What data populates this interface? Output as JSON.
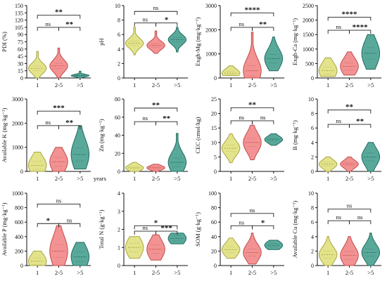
{
  "colors": {
    "g1": "#dede78",
    "g2": "#f07f7f",
    "g3": "#3c9a8a",
    "g1_stroke": "#a8a640",
    "g2_stroke": "#c24a4a",
    "g3_stroke": "#1f6b5e",
    "axis": "#111111",
    "bracket": "#222222"
  },
  "chart_data": [
    {
      "type": "violin",
      "ylabel": "PDI (%)",
      "yticks": [
        "0",
        "15",
        "30",
        "45",
        "60",
        "75",
        "90",
        "105",
        "120",
        "135",
        "150"
      ],
      "ylim": [
        0,
        150
      ],
      "categories": [
        "1",
        "2-5",
        ">5"
      ],
      "series": [
        {
          "center": 20,
          "spread": 26,
          "min": 0,
          "max": 55
        },
        {
          "center": 25,
          "spread": 30,
          "min": 0,
          "max": 62
        },
        {
          "center": 5,
          "spread": 6,
          "min": 0,
          "max": 14
        }
      ],
      "brackets": [
        {
          "from": 0,
          "to": 1,
          "label": "ns",
          "y": 105
        },
        {
          "from": 1,
          "to": 2,
          "label": "**",
          "y": 105
        },
        {
          "from": 0,
          "to": 2,
          "label": "**",
          "y": 130
        }
      ]
    },
    {
      "type": "violin",
      "ylabel": "pH",
      "yticks": [
        "0",
        "2",
        "4",
        "6",
        "8",
        "10"
      ],
      "ylim": [
        0,
        10
      ],
      "categories": [
        "1",
        "2-5",
        ">5"
      ],
      "series": [
        {
          "center": 4.8,
          "spread": 1.6,
          "min": 3.2,
          "max": 7
        },
        {
          "center": 4.5,
          "spread": 1.4,
          "min": 3.4,
          "max": 6.5
        },
        {
          "center": 5.3,
          "spread": 1.6,
          "min": 3.6,
          "max": 7
        }
      ],
      "brackets": [
        {
          "from": 0,
          "to": 1,
          "label": "ns",
          "y": 7.6
        },
        {
          "from": 1,
          "to": 2,
          "label": "*",
          "y": 7.6
        },
        {
          "from": 0,
          "to": 2,
          "label": "ns",
          "y": 9.2
        }
      ]
    },
    {
      "type": "violin",
      "ylabel": "Exgh-Mg (mg·kg⁻¹)",
      "yticks": [
        "0",
        "1000",
        "2000",
        "3000"
      ],
      "ylim": [
        0,
        3000
      ],
      "categories": [
        "1",
        "2-5",
        ">5"
      ],
      "series": [
        {
          "center": 200,
          "spread": 420,
          "min": 100,
          "max": 500
        },
        {
          "center": 300,
          "spread": 1200,
          "min": 0,
          "max": 1900
        },
        {
          "center": 800,
          "spread": 1000,
          "min": 300,
          "max": 1700
        }
      ],
      "brackets": [
        {
          "from": 0,
          "to": 1,
          "label": "ns",
          "y": 2100
        },
        {
          "from": 1,
          "to": 2,
          "label": "**",
          "y": 2100
        },
        {
          "from": 0,
          "to": 2,
          "label": "****",
          "y": 2700
        }
      ]
    },
    {
      "type": "violin",
      "ylabel": "Exgh-Ca (mg·kg⁻¹)",
      "yticks": [
        "0",
        "500",
        "1000",
        "1500",
        "2000",
        "2500"
      ],
      "ylim": [
        0,
        2500
      ],
      "categories": [
        "1",
        "2-5",
        ">5"
      ],
      "series": [
        {
          "center": 250,
          "spread": 700,
          "min": 50,
          "max": 700
        },
        {
          "center": 400,
          "spread": 700,
          "min": 100,
          "max": 900
        },
        {
          "center": 850,
          "spread": 1100,
          "min": 300,
          "max": 1500
        }
      ],
      "brackets": [
        {
          "from": 0,
          "to": 1,
          "label": "ns",
          "y": 1650
        },
        {
          "from": 1,
          "to": 2,
          "label": "****",
          "y": 1650
        },
        {
          "from": 0,
          "to": 2,
          "label": "****",
          "y": 2100
        }
      ]
    },
    {
      "type": "violin",
      "ylabel": "Available K (mg·kg⁻¹)",
      "yticks": [
        "0",
        "1000",
        "2000",
        "3000"
      ],
      "ylim": [
        0,
        3000
      ],
      "xlabel_suffix": "years",
      "categories": [
        "1",
        "2-5",
        ">5"
      ],
      "series": [
        {
          "center": 250,
          "spread": 900,
          "min": 0,
          "max": 800
        },
        {
          "center": 400,
          "spread": 1000,
          "min": 0,
          "max": 1000
        },
        {
          "center": 700,
          "spread": 1500,
          "min": 100,
          "max": 1900
        }
      ],
      "brackets": [
        {
          "from": 0,
          "to": 1,
          "label": "ns",
          "y": 1900
        },
        {
          "from": 1,
          "to": 2,
          "label": "**",
          "y": 1900
        },
        {
          "from": 0,
          "to": 2,
          "label": "***",
          "y": 2500
        }
      ]
    },
    {
      "type": "violin",
      "ylabel": "Zn (mg·kg⁻¹)",
      "yticks": [
        "0",
        "20",
        "40",
        "60",
        "80"
      ],
      "ylim": [
        0,
        80
      ],
      "categories": [
        "1",
        "2-5",
        ">5"
      ],
      "series": [
        {
          "center": 4,
          "spread": 8,
          "min": 0,
          "max": 10
        },
        {
          "center": 4,
          "spread": 6,
          "min": 0,
          "max": 8
        },
        {
          "center": 10,
          "spread": 26,
          "min": 0,
          "max": 42
        }
      ],
      "brackets": [
        {
          "from": 0,
          "to": 1,
          "label": "ns",
          "y": 55
        },
        {
          "from": 1,
          "to": 2,
          "label": "**",
          "y": 55
        },
        {
          "from": 0,
          "to": 2,
          "label": "**",
          "y": 70
        }
      ]
    },
    {
      "type": "violin",
      "ylabel": "CEC (cmol/kg)",
      "yticks": [
        "0",
        "5",
        "10",
        "15",
        "20",
        "25"
      ],
      "ylim": [
        0,
        25
      ],
      "categories": [
        "1",
        "2-5",
        ">5"
      ],
      "series": [
        {
          "center": 8,
          "spread": 6,
          "min": 3,
          "max": 13
        },
        {
          "center": 10,
          "spread": 8,
          "min": 4,
          "max": 16
        },
        {
          "center": 11,
          "spread": 3,
          "min": 9,
          "max": 13
        }
      ],
      "brackets": [
        {
          "from": 0,
          "to": 1,
          "label": "ns",
          "y": 17.5
        },
        {
          "from": 1,
          "to": 2,
          "label": "ns",
          "y": 17.5
        },
        {
          "from": 0,
          "to": 2,
          "label": "**",
          "y": 22
        }
      ]
    },
    {
      "type": "violin",
      "ylabel": "B (mg·kg⁻¹)",
      "yticks": [
        "0",
        "2",
        "4",
        "6",
        "8",
        "10"
      ],
      "ylim": [
        0,
        10
      ],
      "categories": [
        "1",
        "2-5",
        ">5"
      ],
      "series": [
        {
          "center": 1,
          "spread": 1.4,
          "min": 0,
          "max": 2
        },
        {
          "center": 1,
          "spread": 1.3,
          "min": 0,
          "max": 2
        },
        {
          "center": 2,
          "spread": 3,
          "min": 0,
          "max": 4
        }
      ],
      "brackets": [
        {
          "from": 0,
          "to": 1,
          "label": "ns",
          "y": 6.5
        },
        {
          "from": 1,
          "to": 2,
          "label": "**",
          "y": 6.5
        },
        {
          "from": 0,
          "to": 2,
          "label": "**",
          "y": 8.5
        }
      ]
    },
    {
      "type": "violin",
      "ylabel": "Available P (mg·kg⁻¹)",
      "yticks": [
        "0",
        "200",
        "400",
        "600",
        "800",
        "1000"
      ],
      "ylim": [
        0,
        1000
      ],
      "categories": [
        "1",
        "2-5",
        ">5"
      ],
      "series": [
        {
          "center": 60,
          "spread": 250,
          "min": 0,
          "max": 200
        },
        {
          "center": 200,
          "spread": 500,
          "min": 0,
          "max": 550
        },
        {
          "center": 120,
          "spread": 380,
          "min": 0,
          "max": 320
        }
      ],
      "brackets": [
        {
          "from": 0,
          "to": 1,
          "label": "*",
          "y": 580
        },
        {
          "from": 1,
          "to": 2,
          "label": "ns",
          "y": 580
        },
        {
          "from": 0,
          "to": 2,
          "label": "ns",
          "y": 850
        }
      ]
    },
    {
      "type": "violin",
      "ylabel": "Total N (g·kg⁻¹)",
      "yticks": [
        "0",
        "1",
        "2",
        "3",
        "4"
      ],
      "ylim": [
        0,
        4
      ],
      "categories": [
        "1",
        "2-5",
        ">5"
      ],
      "series": [
        {
          "center": 1.0,
          "spread": 1.3,
          "min": 0.4,
          "max": 1.6
        },
        {
          "center": 0.9,
          "spread": 1.3,
          "min": 0.3,
          "max": 1.7
        },
        {
          "center": 1.5,
          "spread": 0.8,
          "min": 1.2,
          "max": 1.8
        }
      ],
      "brackets": [
        {
          "from": 0,
          "to": 1,
          "label": "ns",
          "y": 1.9
        },
        {
          "from": 1,
          "to": 2,
          "label": "***",
          "y": 1.9
        },
        {
          "from": 0,
          "to": 2,
          "label": "*",
          "y": 2.2
        }
      ]
    },
    {
      "type": "violin",
      "ylabel": "SOM (g·kg⁻¹)",
      "yticks": [
        "0",
        "20",
        "40",
        "60",
        "80",
        "100"
      ],
      "ylim": [
        0,
        100
      ],
      "categories": [
        "1",
        "2-5",
        ">5"
      ],
      "series": [
        {
          "center": 22,
          "spread": 22,
          "min": 10,
          "max": 38
        },
        {
          "center": 18,
          "spread": 28,
          "min": 2,
          "max": 45
        },
        {
          "center": 28,
          "spread": 14,
          "min": 22,
          "max": 35
        }
      ],
      "brackets": [
        {
          "from": 0,
          "to": 1,
          "label": "ns",
          "y": 55
        },
        {
          "from": 1,
          "to": 2,
          "label": "*",
          "y": 55
        },
        {
          "from": 0,
          "to": 2,
          "label": "ns",
          "y": 72
        }
      ]
    },
    {
      "type": "violin",
      "ylabel": "Available Cu (mg·kg⁻¹)",
      "yticks": [
        "0",
        "2",
        "4",
        "6",
        "8",
        "10"
      ],
      "ylim": [
        0,
        10
      ],
      "categories": [
        "1",
        "2-5",
        ">5"
      ],
      "series": [
        {
          "center": 1.5,
          "spread": 2.6,
          "min": 0,
          "max": 4
        },
        {
          "center": 1.4,
          "spread": 3,
          "min": 0,
          "max": 4
        },
        {
          "center": 1.8,
          "spread": 2.8,
          "min": 0,
          "max": 4.5
        }
      ],
      "brackets": [
        {
          "from": 0,
          "to": 1,
          "label": "ns",
          "y": 6.2
        },
        {
          "from": 1,
          "to": 2,
          "label": "ns",
          "y": 6.2
        },
        {
          "from": 0,
          "to": 2,
          "label": "ns",
          "y": 7.8
        }
      ]
    }
  ]
}
